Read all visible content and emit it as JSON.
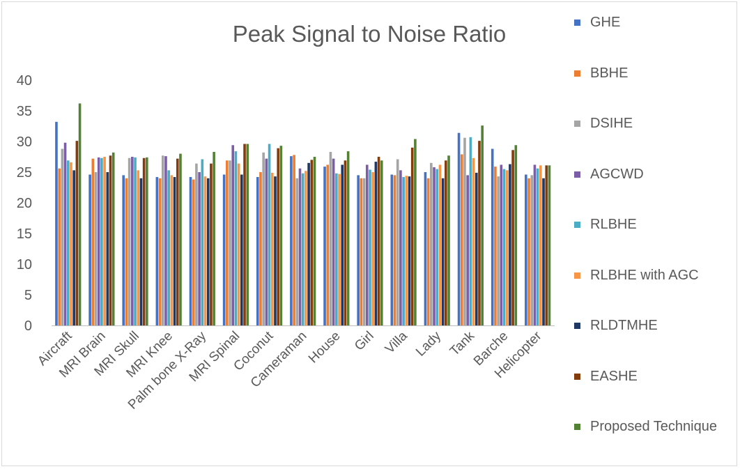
{
  "chart_data": {
    "type": "bar",
    "title": "Peak Signal to Noise Ratio",
    "xlabel": "",
    "ylabel": "",
    "ylim": [
      0,
      40
    ],
    "yticks": [
      0,
      5,
      10,
      15,
      20,
      25,
      30,
      35,
      40
    ],
    "grid": false,
    "legend_position": "right",
    "categories": [
      "Aircraft",
      "MRI Brain",
      "MRI Skull",
      "MRI Knee",
      "Palm bone X-Ray",
      "MRI Spinal",
      "Coconut",
      "Cameraman",
      "House",
      "Girl",
      "Villa",
      "Lady",
      "Tank",
      "Barche",
      "Helicopter"
    ],
    "series": [
      {
        "name": "GHE",
        "color": "#4472c4",
        "values": [
          33.2,
          24.6,
          24.5,
          24.2,
          24.2,
          24.6,
          24.2,
          27.6,
          25.9,
          24.5,
          24.6,
          25.0,
          31.4,
          28.8,
          24.6
        ]
      },
      {
        "name": "BBHE",
        "color": "#ed7d31",
        "values": [
          25.6,
          27.2,
          24.0,
          24.0,
          23.8,
          26.9,
          25.0,
          27.8,
          26.2,
          24.0,
          24.5,
          24.0,
          27.9,
          25.9,
          24.0
        ]
      },
      {
        "name": "DSIHE",
        "color": "#a5a5a5",
        "values": [
          28.8,
          25.0,
          27.3,
          27.7,
          26.4,
          26.9,
          28.2,
          24.0,
          28.3,
          24.0,
          27.1,
          26.5,
          30.6,
          24.3,
          24.5
        ]
      },
      {
        "name": "AGCWD",
        "color": "#7b5ea7",
        "values": [
          29.8,
          27.4,
          27.5,
          27.6,
          25.0,
          29.4,
          27.2,
          25.6,
          27.2,
          26.2,
          25.3,
          25.8,
          24.5,
          26.2,
          26.2
        ]
      },
      {
        "name": "RLBHE",
        "color": "#4bacc6",
        "values": [
          26.9,
          27.3,
          27.4,
          25.3,
          27.1,
          28.4,
          29.6,
          24.8,
          24.8,
          25.4,
          24.2,
          25.5,
          30.7,
          25.5,
          25.6
        ]
      },
      {
        "name": "RLBHE with AGC",
        "color": "#f79646",
        "values": [
          26.6,
          27.5,
          25.3,
          24.5,
          24.3,
          26.4,
          24.9,
          25.2,
          24.7,
          25.0,
          24.4,
          26.2,
          27.3,
          25.3,
          26.1
        ]
      },
      {
        "name": "RLDTMHE",
        "color": "#1f3864",
        "values": [
          25.3,
          25.0,
          24.0,
          24.2,
          24.0,
          24.6,
          24.3,
          26.5,
          26.2,
          26.7,
          24.3,
          24.0,
          24.9,
          26.3,
          24.0
        ]
      },
      {
        "name": "EASHE",
        "color": "#843c0c",
        "values": [
          30.1,
          27.7,
          27.3,
          27.2,
          26.4,
          29.6,
          28.9,
          27.0,
          26.9,
          27.5,
          29.0,
          26.9,
          30.1,
          28.6,
          26.1
        ]
      },
      {
        "name": "Proposed Technique",
        "color": "#548235",
        "values": [
          36.2,
          28.2,
          27.4,
          28.0,
          28.3,
          29.6,
          29.3,
          27.5,
          28.4,
          26.9,
          30.4,
          27.7,
          32.6,
          29.4,
          26.1
        ]
      }
    ]
  }
}
